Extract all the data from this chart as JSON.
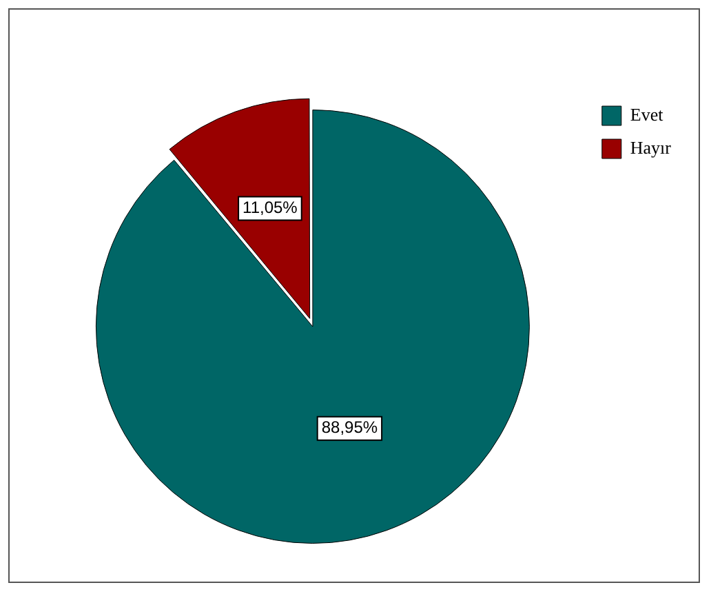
{
  "chart_data": {
    "type": "pie",
    "categories": [
      "Evet",
      "Hayır"
    ],
    "values": [
      88.95,
      11.05
    ],
    "colors": [
      "#006666",
      "#990000"
    ],
    "value_labels": [
      "88,95%",
      "11,05%"
    ],
    "legend": "top right"
  }
}
